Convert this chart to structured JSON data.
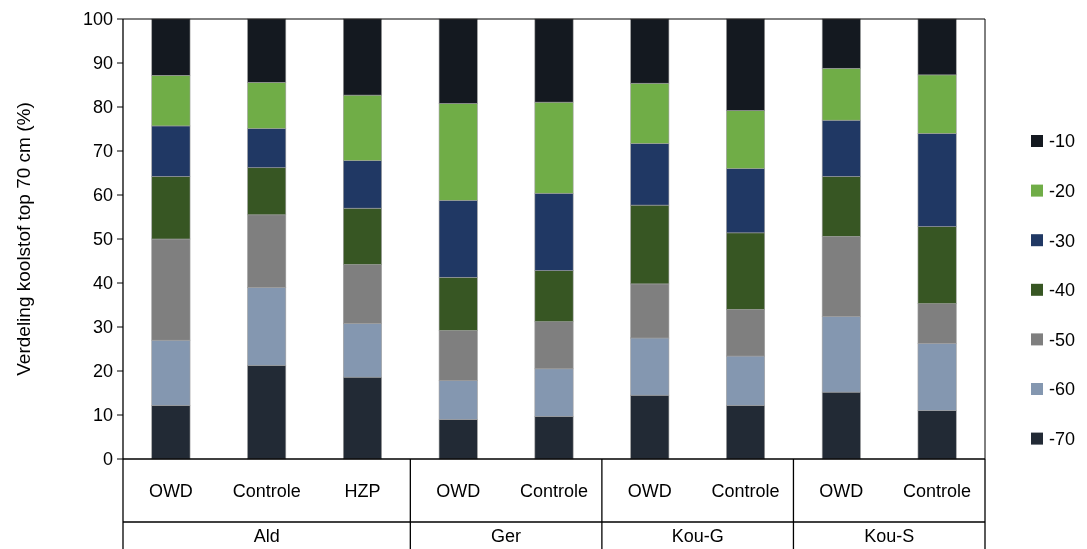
{
  "chart_data": {
    "type": "bar",
    "stacked": true,
    "ylabel": "Verdeling koolstof top 70 cm (%)",
    "categories": [
      "OWD",
      "Controle",
      "HZP",
      "OWD",
      "Controle",
      "OWD",
      "Controle",
      "OWD",
      "Controle"
    ],
    "annotations": [
      "Ald",
      "Ger",
      "Kou-G",
      "Kou-S"
    ],
    "ylim": [
      0,
      100
    ],
    "yticks": [
      0,
      10,
      20,
      30,
      40,
      50,
      60,
      70,
      80,
      90,
      100
    ],
    "legend": "right",
    "grid": false,
    "series": [
      {
        "name": "-70",
        "color": "#222a35",
        "values": [
          12.2,
          21.3,
          18.6,
          9,
          9.7,
          14.5,
          12.2,
          15.2,
          11
        ]
      },
      {
        "name": "-60",
        "color": "#8497b0",
        "values": [
          14.8,
          17.7,
          12.2,
          8.8,
          10.8,
          13,
          11.2,
          17.2,
          15.3
        ]
      },
      {
        "name": "-50",
        "color": "#7f7f7f",
        "values": [
          23,
          16.5,
          13.4,
          11.4,
          10.7,
          12.3,
          10.6,
          18.2,
          9
        ]
      },
      {
        "name": "-40",
        "color": "#375623",
        "values": [
          14.2,
          10.7,
          12.8,
          12.1,
          11.6,
          17.9,
          17.4,
          13.6,
          17.5
        ]
      },
      {
        "name": "-30",
        "color": "#203864",
        "values": [
          11.5,
          8.9,
          10.8,
          17.5,
          17.6,
          14,
          14.6,
          12.8,
          21.2
        ]
      },
      {
        "name": "-20",
        "color": "#70ad47",
        "values": [
          11.5,
          10.5,
          14.9,
          22,
          20.7,
          13.7,
          13.2,
          11.8,
          13.3
        ]
      },
      {
        "name": "-10",
        "color": "#141920",
        "values": [
          12.8,
          14.4,
          17.3,
          19.2,
          18.9,
          14.6,
          20.8,
          11.2,
          12.7
        ]
      }
    ]
  }
}
